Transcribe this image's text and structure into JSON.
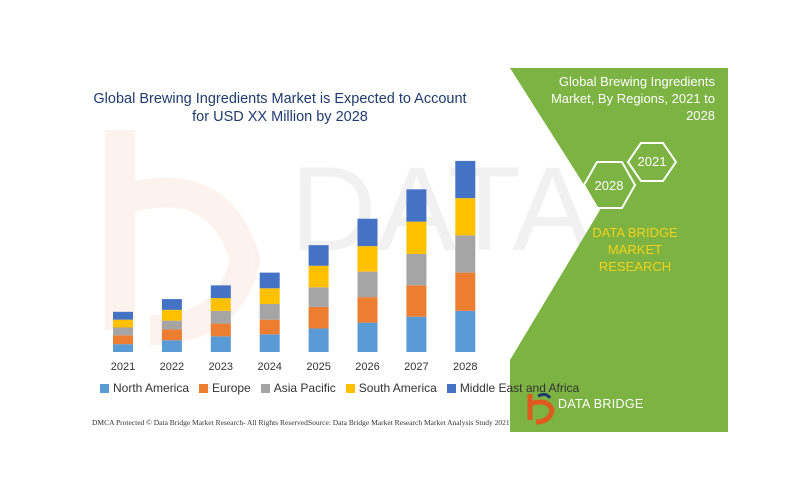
{
  "chart_data": {
    "type": "bar",
    "stacked": true,
    "title": "Global Brewing Ingredients Market is Expected to Account for USD XX Million by 2028",
    "categories": [
      "2021",
      "2022",
      "2023",
      "2024",
      "2025",
      "2026",
      "2027",
      "2028"
    ],
    "series": [
      {
        "name": "North America",
        "color": "#5b9bd5",
        "values": [
          8,
          12,
          16,
          18,
          24,
          30,
          36,
          42
        ]
      },
      {
        "name": "Europe",
        "color": "#ed7d31",
        "values": [
          9,
          11,
          13,
          15,
          22,
          26,
          32,
          39
        ]
      },
      {
        "name": "Asia Pacific",
        "color": "#a5a5a5",
        "values": [
          8,
          9,
          13,
          16,
          20,
          26,
          32,
          38
        ]
      },
      {
        "name": "South America",
        "color": "#ffc000",
        "values": [
          8,
          11,
          13,
          16,
          22,
          26,
          33,
          38
        ]
      },
      {
        "name": "Middle East and Africa",
        "color": "#4472c4",
        "values": [
          8,
          11,
          13,
          16,
          21,
          28,
          33,
          38
        ]
      }
    ],
    "xlabel": "",
    "ylabel": "",
    "grid": false,
    "legend": "bottom"
  },
  "footer": {
    "left": "DMCA Protected © Data Bridge Market Research- All Rights Reserved.",
    "right": "Source: Data Bridge Market Research Market Analysis Study 2021"
  },
  "panel": {
    "heading": "Global Brewing Ingredients Market, By Regions, 2021 to 2028",
    "hex1": "2021",
    "hex2": "2028",
    "brand": "DATA BRIDGE MARKET RESEARCH",
    "logo": "DATA BRIDGE"
  },
  "colors": {
    "panel_green": "#7cb342",
    "title_blue": "#1f3b6f",
    "brand_yellow": "#f4d21a"
  }
}
